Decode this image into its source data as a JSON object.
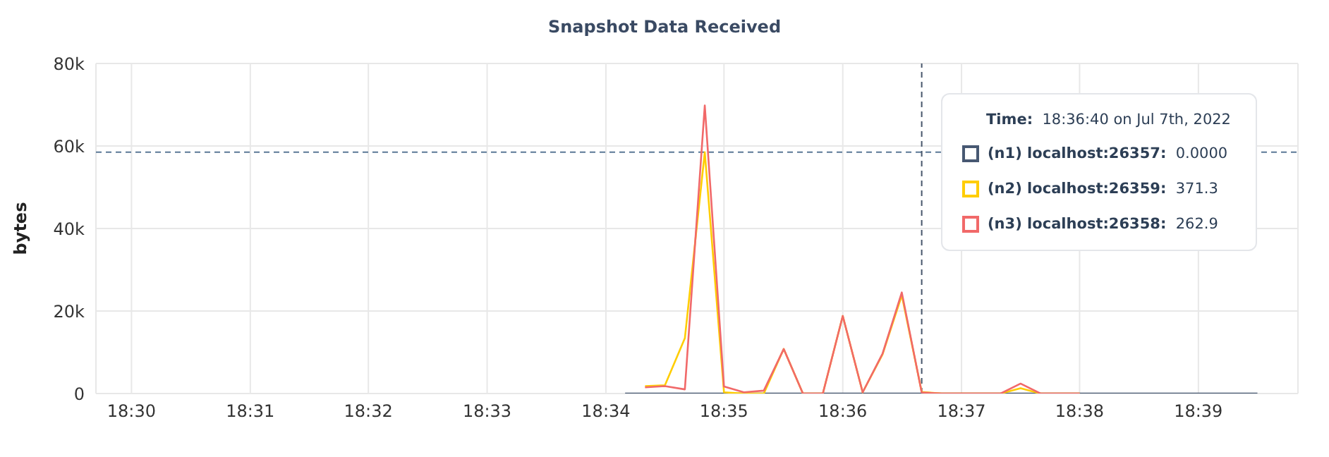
{
  "chart_data": {
    "type": "line",
    "title": "Snapshot Data Received",
    "ylabel": "bytes",
    "xlim": [
      18.495,
      18.664
    ],
    "xticks": [
      {
        "value": 18.5,
        "label": "18:30"
      },
      {
        "value": 18.5167,
        "label": "18:31"
      },
      {
        "value": 18.5333,
        "label": "18:32"
      },
      {
        "value": 18.55,
        "label": "18:33"
      },
      {
        "value": 18.5667,
        "label": "18:34"
      },
      {
        "value": 18.5833,
        "label": "18:35"
      },
      {
        "value": 18.6,
        "label": "18:36"
      },
      {
        "value": 18.6167,
        "label": "18:37"
      },
      {
        "value": 18.6333,
        "label": "18:38"
      },
      {
        "value": 18.65,
        "label": "18:39"
      }
    ],
    "ylim": [
      0,
      80000
    ],
    "yticks": [
      0,
      {
        "value": 20000,
        "label": "20k"
      },
      {
        "value": 40000,
        "label": "40k"
      },
      {
        "value": 60000,
        "label": "60k"
      },
      {
        "value": 80000,
        "label": "80k"
      }
    ],
    "grid": true,
    "legend": "top right",
    "marker": "none",
    "line_style": "solid",
    "series": [
      {
        "name": "(n1) localhost:26357:",
        "color": "#475872",
        "x": [
          18.5694,
          18.6583
        ],
        "values": [
          0,
          0
        ]
      },
      {
        "name": "(n2) localhost:26359:",
        "color": "#ffcd02",
        "x": [
          18.5722,
          18.575,
          18.5778,
          18.5806,
          18.5833,
          18.5861,
          18.5889,
          18.5917,
          18.5944,
          18.5972,
          18.6,
          18.6028,
          18.6056,
          18.6083,
          18.6111,
          18.6139,
          18.6167,
          18.6194,
          18.6222,
          18.625,
          18.6278,
          18.6306,
          18.6333
        ],
        "values": [
          1800,
          2000,
          13400,
          58500,
          300,
          0,
          0,
          10800,
          0,
          0,
          18800,
          300,
          9500,
          23800,
          371.3,
          0,
          0,
          0,
          0,
          1300,
          0,
          0,
          0
        ]
      },
      {
        "name": "(n3) localhost:26358:",
        "color": "#f16969",
        "x": [
          18.5722,
          18.575,
          18.5778,
          18.5806,
          18.5833,
          18.5861,
          18.5889,
          18.5917,
          18.5944,
          18.5972,
          18.6,
          18.6028,
          18.6056,
          18.6083,
          18.6111,
          18.6139,
          18.6167,
          18.6194,
          18.6222,
          18.625,
          18.6278,
          18.6306,
          18.6333
        ],
        "values": [
          1500,
          1800,
          1000,
          69800,
          1700,
          300,
          700,
          10800,
          0,
          0,
          18800,
          300,
          9700,
          24500,
          262.9,
          0,
          0,
          0,
          0,
          2400,
          0,
          0,
          0
        ]
      }
    ],
    "ref_lines": [
      {
        "axis": "y",
        "value": 58500,
        "color": "#5b7896",
        "line_style": "dashed"
      },
      {
        "axis": "x",
        "value": 18.6111,
        "color": "#47566b",
        "line_style": "dashed"
      }
    ],
    "annotations": [
      "Time:",
      "18:36:40 on Jul 7th, 2022",
      "0.0000",
      "371.3",
      "262.9"
    ]
  }
}
